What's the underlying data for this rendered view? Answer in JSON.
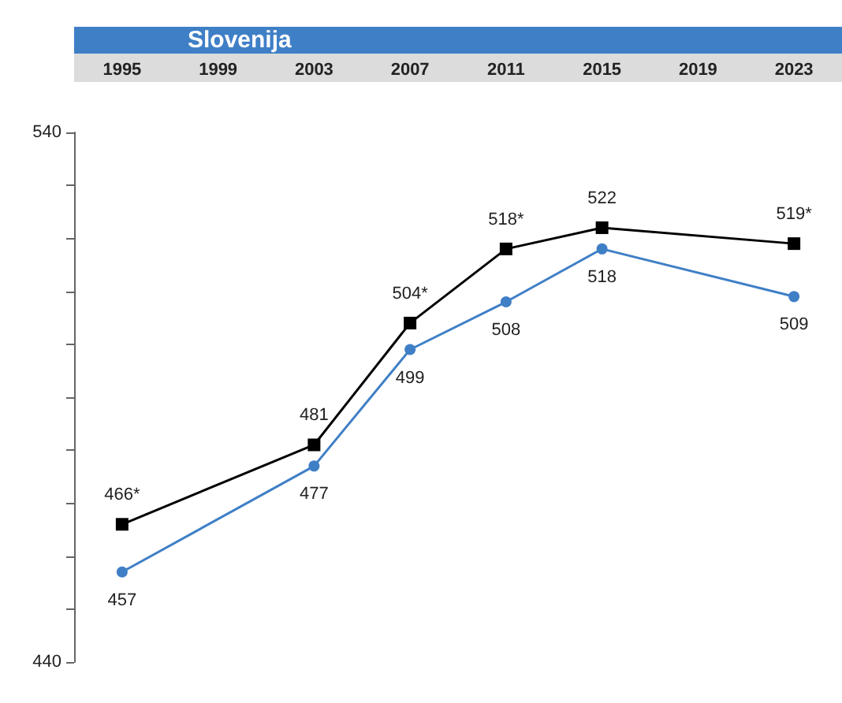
{
  "chart_data": {
    "type": "line",
    "title": "Slovenija",
    "categories": [
      "1995",
      "1999",
      "2003",
      "2007",
      "2011",
      "2015",
      "2019",
      "2023"
    ],
    "series": [
      {
        "color": "#000000",
        "marker": "square",
        "values": [
          466,
          null,
          481,
          504,
          518,
          522,
          null,
          519
        ],
        "value_labels": [
          "466*",
          null,
          "481",
          "504*",
          "518*",
          "522",
          null,
          "519*"
        ]
      },
      {
        "color": "#3f7fc6",
        "marker": "circle",
        "values": [
          457,
          null,
          477,
          499,
          508,
          518,
          null,
          509
        ],
        "value_labels": [
          "457",
          null,
          "477",
          "499",
          "508",
          "518",
          null,
          "509"
        ]
      }
    ],
    "ylim": [
      440,
      540
    ],
    "yticks": [
      440,
      {
        "value": 450,
        "label": null
      },
      {
        "value": 460,
        "label": null
      },
      {
        "value": 470,
        "label": null
      },
      {
        "value": 480,
        "label": null
      },
      {
        "value": 490,
        "label": null
      },
      {
        "value": 500,
        "label": null
      },
      {
        "value": 510,
        "label": null
      },
      {
        "value": 520,
        "label": null
      },
      {
        "value": 530,
        "label": null
      },
      540
    ]
  }
}
